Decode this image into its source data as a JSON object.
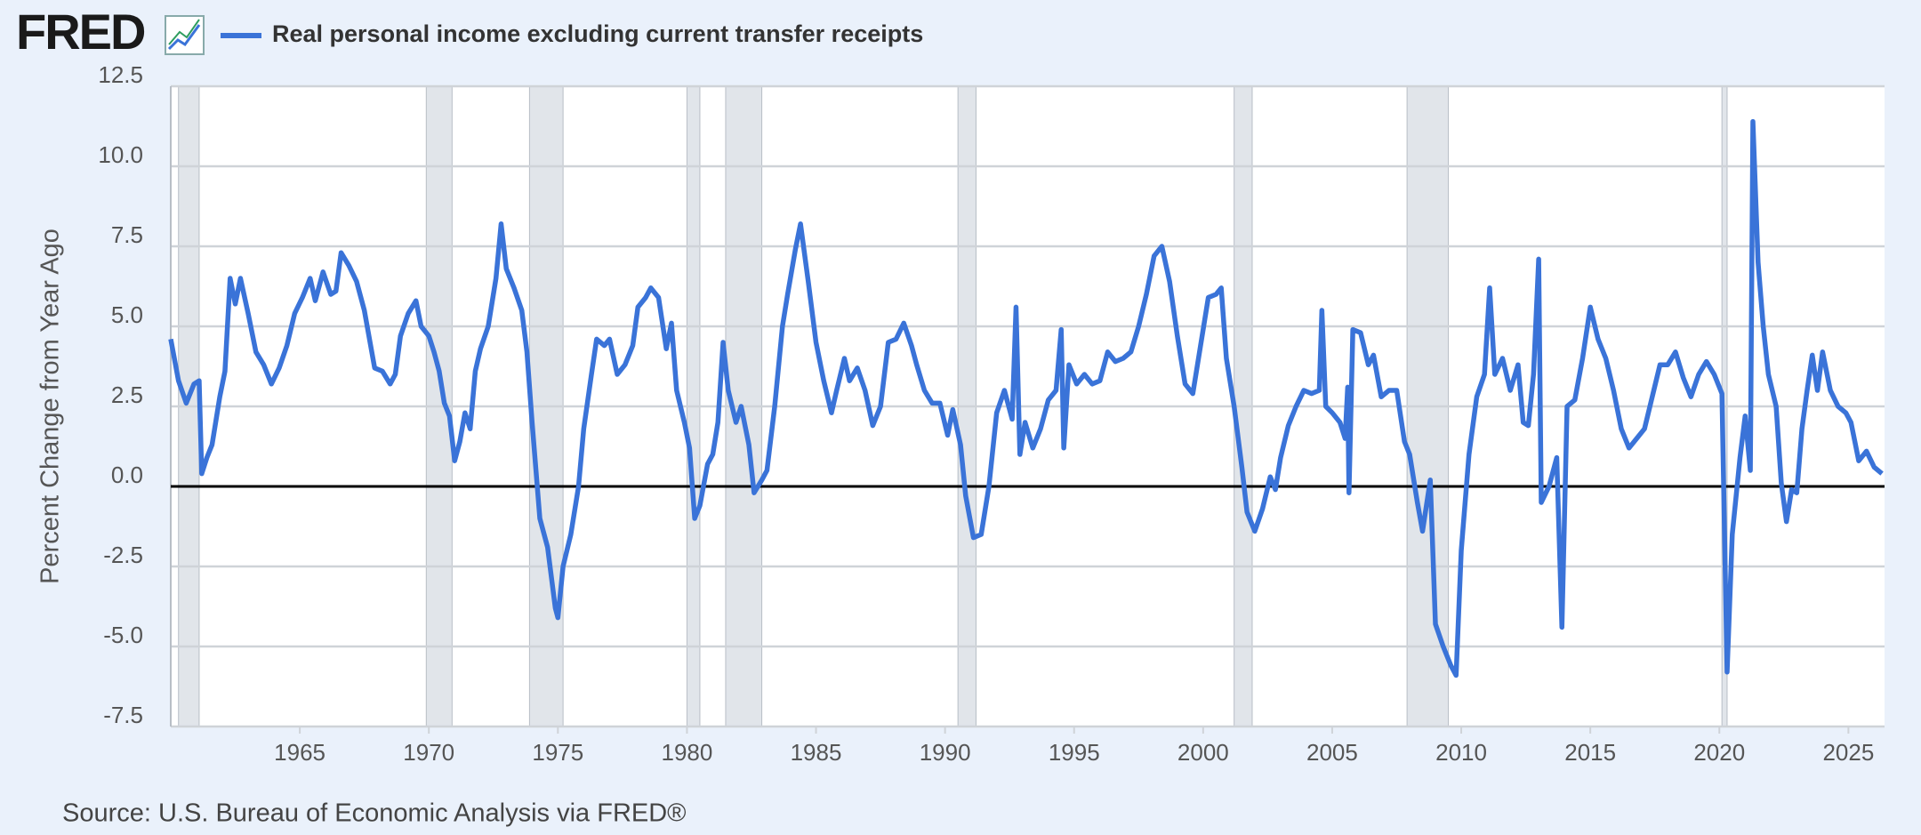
{
  "logo": "FRED",
  "chart_data": {
    "type": "line",
    "title": "Real personal income excluding current transfer receipts",
    "y_label": "Percent Change from Year Ago",
    "source": "Source: U.S. Bureau of Economic Analysis via FRED®",
    "xlim": [
      1960,
      2026.4
    ],
    "xticks": [
      1965,
      1970,
      1975,
      1980,
      1985,
      1990,
      1995,
      2000,
      2005,
      2010,
      2015,
      2020,
      2025
    ],
    "ylim": [
      -7.5,
      12.5
    ],
    "yticks": [
      {
        "value": -7.5,
        "label": "-7.5"
      },
      {
        "value": -5,
        "label": "-5.0"
      },
      -2.5,
      {
        "value": 0,
        "label": "0.0"
      },
      2.5,
      {
        "value": 5,
        "label": "5.0"
      },
      7.5,
      {
        "value": 10,
        "label": "10.0"
      },
      12.5
    ],
    "grid": true,
    "zero_line": true,
    "recession_shading": [
      [
        1960.3,
        1961.1
      ],
      [
        1969.9,
        1970.9
      ],
      [
        1973.9,
        1975.2
      ],
      [
        1980.0,
        1980.5
      ],
      [
        1981.5,
        1982.9
      ],
      [
        1990.5,
        1991.2
      ],
      [
        2001.2,
        2001.9
      ],
      [
        2007.9,
        2009.5
      ],
      [
        2020.1,
        2020.3
      ]
    ],
    "series": [
      {
        "name": "Real personal income excluding current transfer receipts",
        "color": "#3a73d8",
        "x": [
          1960.0,
          1960.3,
          1960.6,
          1960.9,
          1961.1,
          1961.2,
          1961.4,
          1961.6,
          1961.9,
          1962.1,
          1962.3,
          1962.5,
          1962.7,
          1963.0,
          1963.3,
          1963.6,
          1963.9,
          1964.2,
          1964.5,
          1964.8,
          1965.1,
          1965.4,
          1965.6,
          1965.9,
          1966.2,
          1966.4,
          1966.6,
          1966.9,
          1967.2,
          1967.5,
          1967.7,
          1967.9,
          1968.2,
          1968.5,
          1968.7,
          1968.9,
          1969.2,
          1969.5,
          1969.7,
          1970.0,
          1970.2,
          1970.4,
          1970.6,
          1970.8,
          1971.0,
          1971.2,
          1971.4,
          1971.6,
          1971.8,
          1972.0,
          1972.3,
          1972.6,
          1972.8,
          1973.0,
          1973.3,
          1973.6,
          1973.8,
          1974.0,
          1974.3,
          1974.6,
          1974.9,
          1975.0,
          1975.2,
          1975.5,
          1975.8,
          1976.0,
          1976.3,
          1976.5,
          1976.8,
          1977.0,
          1977.3,
          1977.6,
          1977.9,
          1978.1,
          1978.4,
          1978.6,
          1978.9,
          1979.2,
          1979.4,
          1979.6,
          1979.9,
          1980.1,
          1980.3,
          1980.5,
          1980.8,
          1981.0,
          1981.2,
          1981.4,
          1981.6,
          1981.9,
          1982.1,
          1982.4,
          1982.6,
          1982.9,
          1983.1,
          1983.4,
          1983.7,
          1983.9,
          1984.2,
          1984.4,
          1984.7,
          1985.0,
          1985.3,
          1985.6,
          1985.8,
          1986.1,
          1986.3,
          1986.6,
          1986.9,
          1987.2,
          1987.5,
          1987.8,
          1988.1,
          1988.4,
          1988.7,
          1988.9,
          1989.2,
          1989.5,
          1989.8,
          1990.1,
          1990.3,
          1990.6,
          1990.8,
          1991.1,
          1991.4,
          1991.7,
          1992.0,
          1992.3,
          1992.6,
          1992.75,
          1992.9,
          1993.1,
          1993.4,
          1993.7,
          1994.0,
          1994.3,
          1994.5,
          1994.6,
          1994.8,
          1995.1,
          1995.4,
          1995.7,
          1996.0,
          1996.3,
          1996.6,
          1996.9,
          1997.2,
          1997.5,
          1997.8,
          1998.1,
          1998.4,
          1998.7,
          1999.0,
          1999.3,
          1999.6,
          1999.9,
          2000.2,
          2000.5,
          2000.7,
          2000.9,
          2001.2,
          2001.5,
          2001.7,
          2002.0,
          2002.3,
          2002.6,
          2002.8,
          2003.0,
          2003.3,
          2003.6,
          2003.9,
          2004.2,
          2004.5,
          2004.6,
          2004.75,
          2005.0,
          2005.3,
          2005.5,
          2005.6,
          2005.65,
          2005.8,
          2006.1,
          2006.4,
          2006.6,
          2006.9,
          2007.2,
          2007.5,
          2007.8,
          2008.0,
          2008.3,
          2008.5,
          2008.8,
          2009.0,
          2009.3,
          2009.6,
          2009.8,
          2010.0,
          2010.3,
          2010.6,
          2010.9,
          2011.1,
          2011.3,
          2011.6,
          2011.9,
          2012.2,
          2012.4,
          2012.6,
          2012.8,
          2013.0,
          2013.1,
          2013.4,
          2013.7,
          2013.9,
          2014.1,
          2014.4,
          2014.7,
          2015.0,
          2015.3,
          2015.6,
          2015.9,
          2016.2,
          2016.5,
          2016.8,
          2017.1,
          2017.4,
          2017.7,
          2018.0,
          2018.3,
          2018.6,
          2018.9,
          2019.2,
          2019.5,
          2019.8,
          2020.1,
          2020.3,
          2020.5,
          2020.8,
          2021.0,
          2021.2,
          2021.3,
          2021.5,
          2021.7,
          2021.9,
          2022.2,
          2022.4,
          2022.6,
          2022.8,
          2023.0,
          2023.2,
          2023.4,
          2023.6,
          2023.8,
          2024.0,
          2024.3,
          2024.6,
          2024.9,
          2025.1,
          2025.4,
          2025.7,
          2026.0,
          2026.3
        ],
        "values": [
          4.6,
          3.3,
          2.6,
          3.2,
          3.3,
          0.4,
          0.9,
          1.3,
          2.8,
          3.6,
          6.5,
          5.7,
          6.5,
          5.4,
          4.2,
          3.8,
          3.2,
          3.7,
          4.4,
          5.4,
          5.9,
          6.5,
          5.8,
          6.7,
          6.0,
          6.1,
          7.3,
          6.9,
          6.4,
          5.5,
          4.6,
          3.7,
          3.6,
          3.2,
          3.5,
          4.7,
          5.4,
          5.8,
          5.0,
          4.7,
          4.2,
          3.6,
          2.6,
          2.2,
          0.8,
          1.4,
          2.3,
          1.8,
          3.6,
          4.3,
          5.0,
          6.5,
          8.2,
          6.8,
          6.2,
          5.5,
          4.2,
          2.0,
          -1.0,
          -1.9,
          -3.8,
          -4.1,
          -2.5,
          -1.5,
          0.0,
          1.8,
          3.5,
          4.6,
          4.4,
          4.6,
          3.5,
          3.8,
          4.4,
          5.6,
          5.9,
          6.2,
          5.9,
          4.3,
          5.1,
          3.0,
          2.0,
          1.2,
          -1.0,
          -0.6,
          0.7,
          1.0,
          2.0,
          4.5,
          3.0,
          2.0,
          2.5,
          1.3,
          -0.2,
          0.2,
          0.5,
          2.5,
          5.0,
          6.0,
          7.4,
          8.2,
          6.4,
          4.5,
          3.3,
          2.3,
          3.0,
          4.0,
          3.3,
          3.7,
          3.0,
          1.9,
          2.5,
          4.5,
          4.6,
          5.1,
          4.4,
          3.8,
          3.0,
          2.6,
          2.6,
          1.6,
          2.4,
          1.3,
          -0.3,
          -1.6,
          -1.5,
          0.0,
          2.3,
          3.0,
          2.1,
          5.6,
          1.0,
          2.0,
          1.2,
          1.8,
          2.7,
          3.0,
          4.9,
          1.2,
          3.8,
          3.2,
          3.5,
          3.2,
          3.3,
          4.2,
          3.9,
          4.0,
          4.2,
          5.0,
          6.0,
          7.2,
          7.5,
          6.4,
          4.7,
          3.2,
          2.9,
          4.4,
          5.9,
          6.0,
          6.2,
          4.0,
          2.5,
          0.6,
          -0.8,
          -1.4,
          -0.7,
          0.3,
          -0.1,
          0.9,
          1.9,
          2.5,
          3.0,
          2.9,
          3.0,
          5.5,
          2.5,
          2.3,
          2.0,
          1.5,
          3.1,
          -0.2,
          4.9,
          4.8,
          3.8,
          4.1,
          2.8,
          3.0,
          3.0,
          1.4,
          1.0,
          -0.5,
          -1.4,
          0.2,
          -4.3,
          -5.0,
          -5.6,
          -5.9,
          -2.0,
          1.0,
          2.8,
          3.5,
          6.2,
          3.5,
          4.0,
          3.0,
          3.8,
          2.0,
          1.9,
          3.5,
          7.1,
          -0.5,
          0.0,
          0.9,
          -4.4,
          2.5,
          2.7,
          4.0,
          5.6,
          4.6,
          4.0,
          3.0,
          1.8,
          1.2,
          1.5,
          1.8,
          2.8,
          3.8,
          3.8,
          4.2,
          3.4,
          2.8,
          3.5,
          3.9,
          3.5,
          2.9,
          -5.8,
          -1.5,
          0.9,
          2.2,
          0.5,
          11.4,
          7.0,
          5.0,
          3.5,
          2.5,
          0.1,
          -1.1,
          -0.1,
          -0.2,
          1.8,
          3.0,
          4.1,
          3.0,
          4.2,
          3.0,
          2.5,
          2.3,
          2.0,
          0.8,
          1.1,
          0.6,
          0.4
        ]
      }
    ]
  }
}
